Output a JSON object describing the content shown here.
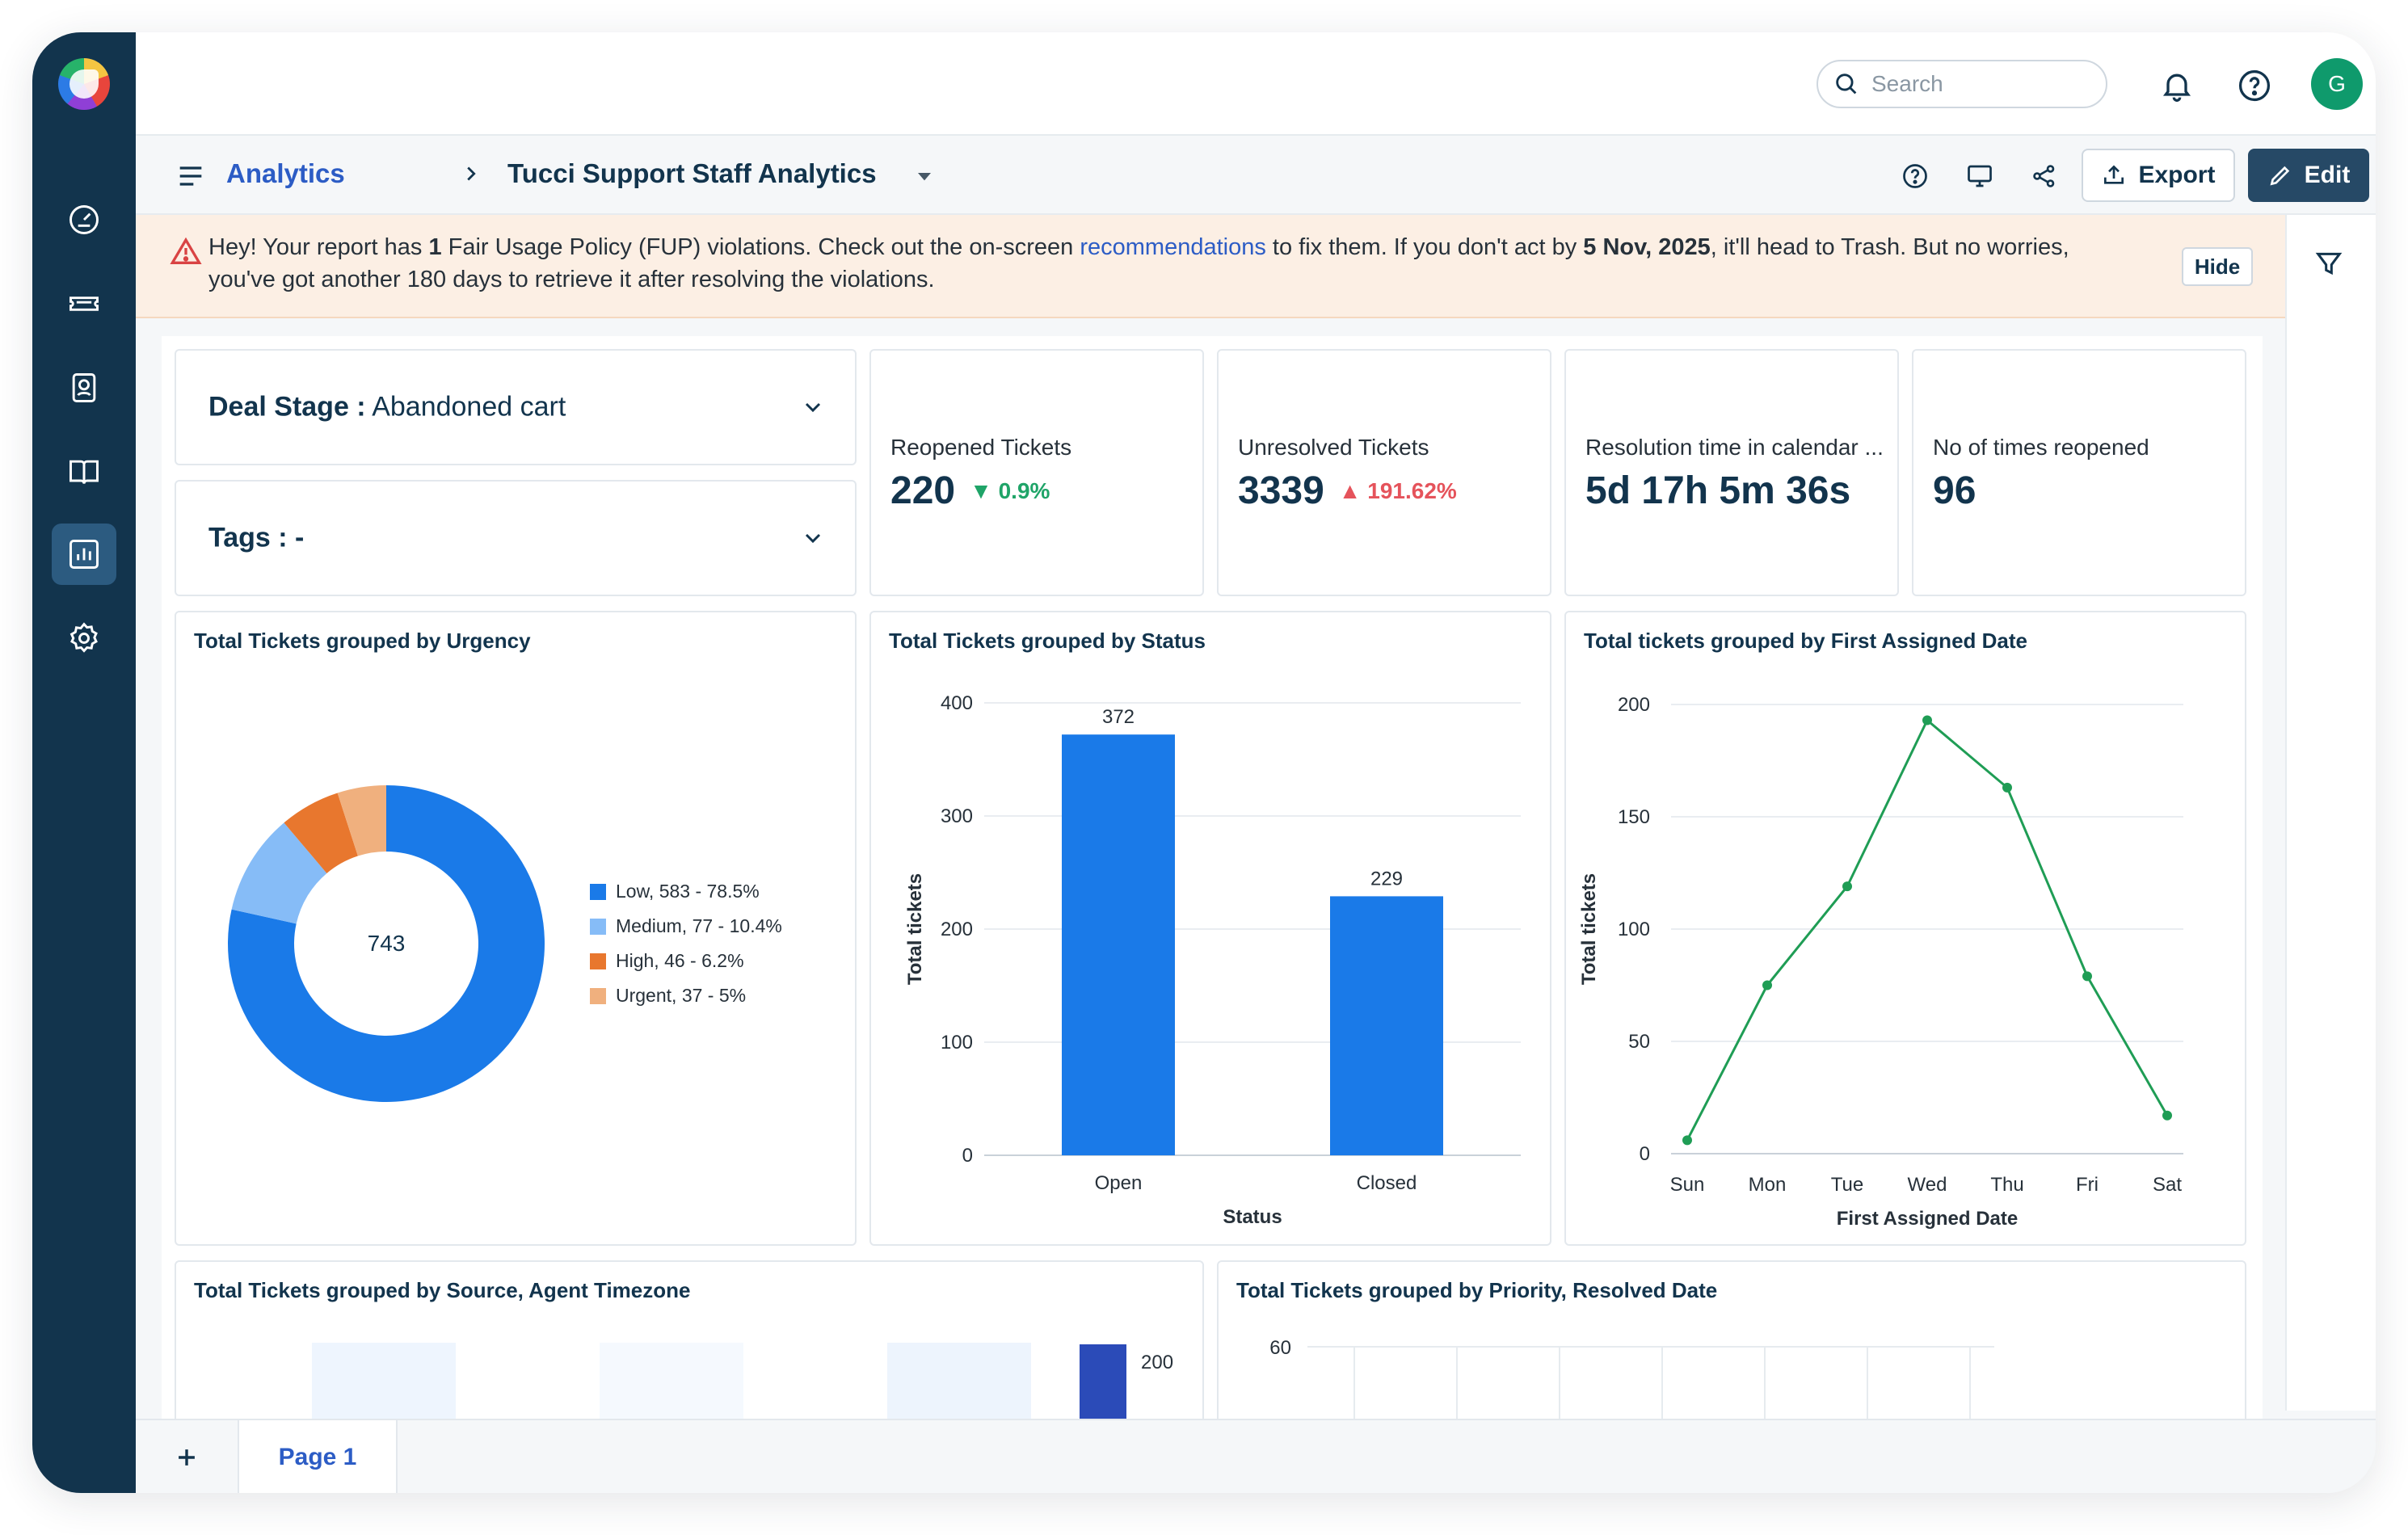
{
  "topbar": {
    "search_placeholder": "Search",
    "avatar_initial": "G"
  },
  "header": {
    "breadcrumb_root": "Analytics",
    "page_title": "Tucci Support Staff Analytics",
    "export_label": "Export",
    "edit_label": "Edit"
  },
  "banner": {
    "part1": "Hey! Your report has ",
    "count": "1",
    "part2": " Fair Usage Policy (FUP) violations. Check out the on-screen ",
    "link": "recommendations",
    "part3": " to fix them. If you don't act by ",
    "date": "5 Nov, 2025",
    "part4": ", it'll head to Trash. But no worries,",
    "line2": "you've got another 180 days to retrieve it after resolving the violations.",
    "hide_label": "Hide"
  },
  "filters": {
    "deal_stage_key": "Deal Stage :",
    "deal_stage_value": " Abandoned cart",
    "tags_key": "Tags :",
    "tags_value": " -"
  },
  "kpis": [
    {
      "title": "Reopened Tickets",
      "value": "220",
      "delta": "0.9%",
      "direction": "down"
    },
    {
      "title": "Unresolved Tickets",
      "value": "3339",
      "delta": "191.62%",
      "direction": "up"
    },
    {
      "title": "Resolution time in calendar ...",
      "value": "5d 17h 5m 36s",
      "delta": "",
      "direction": ""
    },
    {
      "title": "No of times reopened",
      "value": "96",
      "delta": "",
      "direction": ""
    }
  ],
  "charts": {
    "urgency_title": "Total Tickets grouped by Urgency",
    "status_title": "Total Tickets grouped by Status",
    "assigned_title": "Total tickets grouped by First Assigned Date",
    "source_title": "Total Tickets grouped by Source, Agent Timezone",
    "priority_title": "Total Tickets grouped by Priority, Resolved Date"
  },
  "chart_data": [
    {
      "type": "pie",
      "title": "Total Tickets grouped by Urgency",
      "center_total": "743",
      "categories": [
        "Low",
        "Medium",
        "High",
        "Urgent"
      ],
      "values": [
        583,
        77,
        46,
        37
      ],
      "legend": [
        "Low, 583 - 78.5%",
        "Medium, 77 -  10.4%",
        "High, 46 -  6.2%",
        "Urgent, 37 -  5%"
      ],
      "colors": [
        "#1a7ae8",
        "#86bcf7",
        "#e8772e",
        "#f0b07e"
      ]
    },
    {
      "type": "bar",
      "title": "Total Tickets grouped by Status",
      "categories": [
        "Open",
        "Closed"
      ],
      "values": [
        372,
        229
      ],
      "xlabel": "Status",
      "ylabel": "Total tickets",
      "ylim": [
        0,
        400
      ],
      "yticks": [
        0,
        100,
        200,
        300,
        400
      ],
      "color": "#1a7ae8"
    },
    {
      "type": "line",
      "title": "Total tickets grouped by First Assigned Date",
      "categories": [
        "Sun",
        "Mon",
        "Tue",
        "Wed",
        "Thu",
        "Fri",
        "Sat"
      ],
      "values": [
        6,
        75,
        119,
        193,
        163,
        79,
        17
      ],
      "xlabel": "First Assigned Date",
      "ylabel": "Total tickets",
      "ylim": [
        0,
        200
      ],
      "yticks": [
        0,
        50,
        100,
        150,
        200
      ],
      "color": "#1f9d55"
    },
    {
      "type": "bar",
      "title": "Total Tickets grouped by Source, Agent Timezone",
      "visible_tick": "200"
    },
    {
      "type": "bar",
      "title": "Total Tickets grouped by Priority, Resolved Date",
      "visible_tick": "60"
    }
  ],
  "footer": {
    "page_tab": "Page 1"
  }
}
